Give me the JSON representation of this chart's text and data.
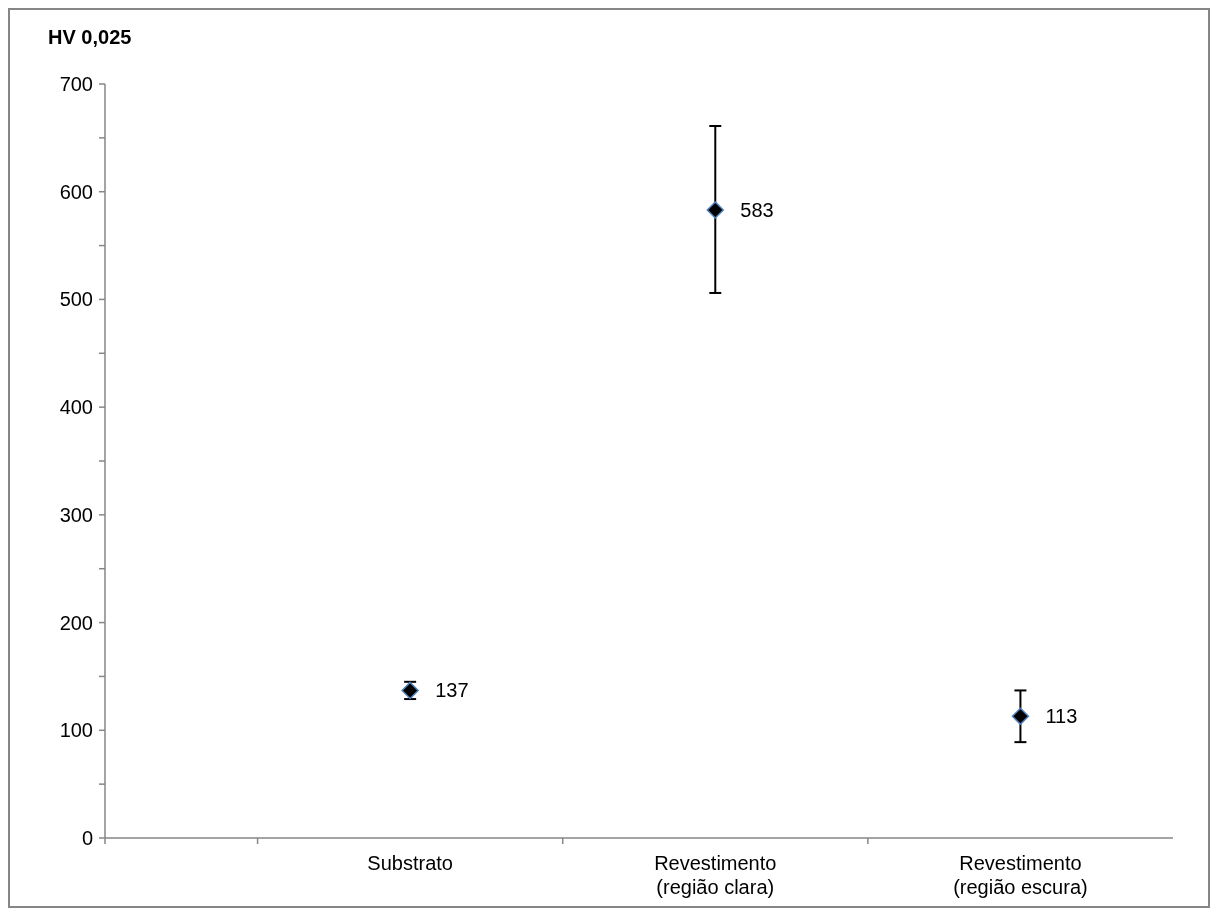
{
  "chart_data": {
    "type": "scatter",
    "ylabel": "HV 0,025",
    "categories": [
      null,
      "Substrato",
      "Revestimento\n(região clara)",
      "Revestimento\n(região escura)"
    ],
    "values": [
      null,
      137,
      583,
      113
    ],
    "errors": [
      null,
      8,
      [
        506,
        661
      ],
      24
    ],
    "color": "#000000",
    "marker": "diamond",
    "data_labels": true,
    "ylim": [
      0,
      700
    ],
    "yticks": [
      0,
      {
        "value": 50,
        "label": null
      },
      100,
      {
        "value": 150,
        "label": null
      },
      200,
      {
        "value": 250,
        "label": null
      },
      300,
      {
        "value": 350,
        "label": null
      },
      400,
      {
        "value": 450,
        "label": null
      },
      500,
      {
        "value": 550,
        "label": null
      },
      600,
      {
        "value": 650,
        "label": null
      },
      700
    ],
    "grid": false
  }
}
